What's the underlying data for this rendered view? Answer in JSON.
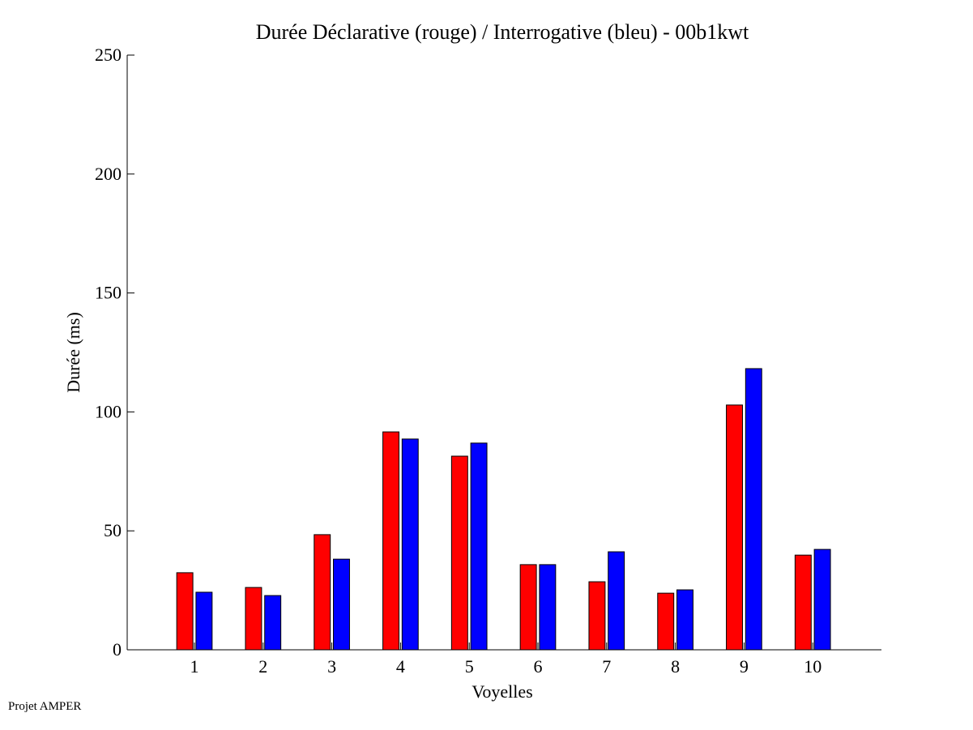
{
  "chart_data": {
    "type": "bar",
    "title": "Durée Déclarative (rouge) / Interrogative (bleu) - 00b1kwt",
    "xlabel": "Voyelles",
    "ylabel": "Durée (ms)",
    "ylim": [
      0,
      250
    ],
    "xlim": [
      0,
      11
    ],
    "yticks": [
      0,
      50,
      100,
      150,
      200,
      250
    ],
    "categories": [
      "1",
      "2",
      "3",
      "4",
      "5",
      "6",
      "7",
      "8",
      "9",
      "10"
    ],
    "grid": false,
    "series": [
      {
        "name": "Déclarative",
        "color": "#ff0000",
        "values": [
          32.4,
          26.2,
          48.4,
          91.6,
          81.4,
          35.8,
          28.6,
          23.8,
          102.9,
          39.8
        ]
      },
      {
        "name": "Interrogative",
        "color": "#0000ff",
        "values": [
          24.2,
          22.8,
          38.1,
          88.6,
          86.9,
          35.8,
          41.2,
          25.2,
          118.2,
          42.2
        ]
      }
    ]
  },
  "footer": "Projet AMPER"
}
